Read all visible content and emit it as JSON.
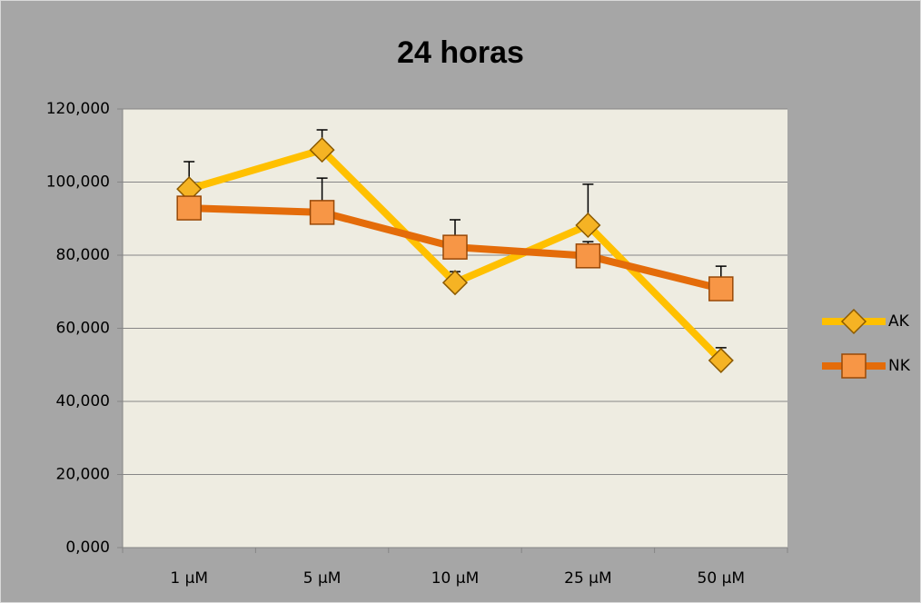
{
  "chart_data": {
    "type": "line",
    "title": "24 horas",
    "categories": [
      "1 µM",
      "5  µM",
      "10  µM",
      "25  µM",
      "50  µM"
    ],
    "series": [
      {
        "name": "AK",
        "color": "#FFC000",
        "marker_color": "#F5B324",
        "marker": "diamond",
        "values": [
          98.1,
          108.8,
          72.5,
          88.2,
          51.2
        ],
        "errors": [
          7.5,
          5.5,
          3,
          11.2,
          3.5
        ]
      },
      {
        "name": "NK",
        "color": "#E46C0A",
        "marker_color": "#F79646",
        "marker": "square",
        "values": [
          92.9,
          91.7,
          82.2,
          79.8,
          70.8
        ],
        "errors": [
          2,
          9.4,
          7.5,
          3.9,
          6.2
        ]
      }
    ],
    "ylim": [
      0,
      120
    ],
    "yticks": [
      {
        "value": 0,
        "label": "0,000"
      },
      {
        "value": 20,
        "label": "20,000"
      },
      {
        "value": 40,
        "label": "40,000"
      },
      {
        "value": 60,
        "label": "60,000"
      },
      {
        "value": 80,
        "label": "80,000"
      },
      {
        "value": 100,
        "label": "100,000"
      },
      {
        "value": 120,
        "label": "120,000"
      }
    ],
    "grid": true,
    "legend": "right"
  }
}
